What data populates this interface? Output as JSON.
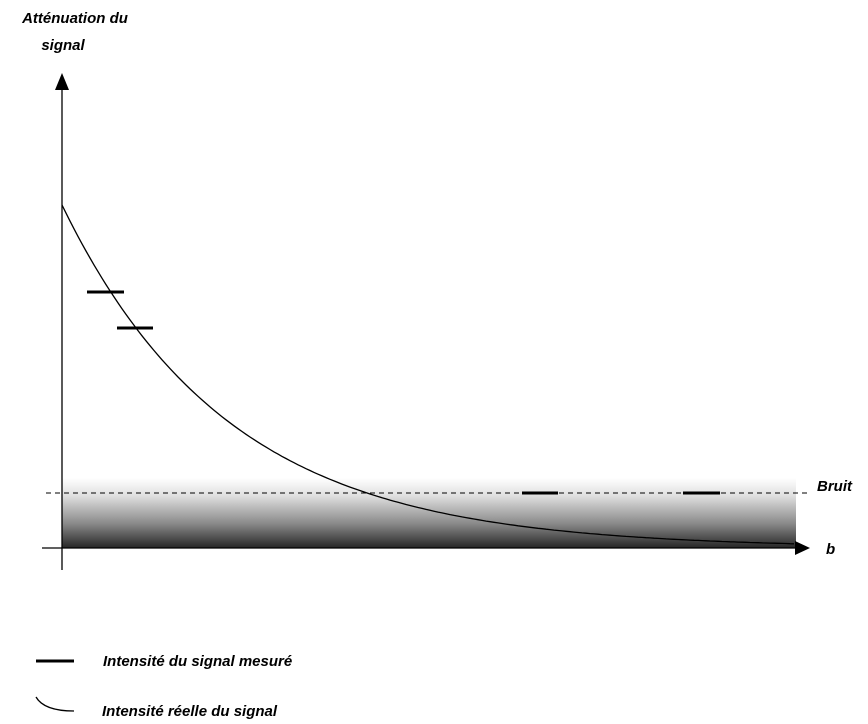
{
  "y_axis": {
    "label_line1": "Atténuation du",
    "label_line2": "signal"
  },
  "x_axis": {
    "label": "b"
  },
  "noise": {
    "label": "Bruit"
  },
  "legend": {
    "measured": "Intensité du signal mesuré",
    "actual": "Intensité réelle du signal"
  },
  "colors": {
    "ink": "#000000",
    "noise_light": "#ffffff",
    "noise_dark": "#262626"
  }
}
